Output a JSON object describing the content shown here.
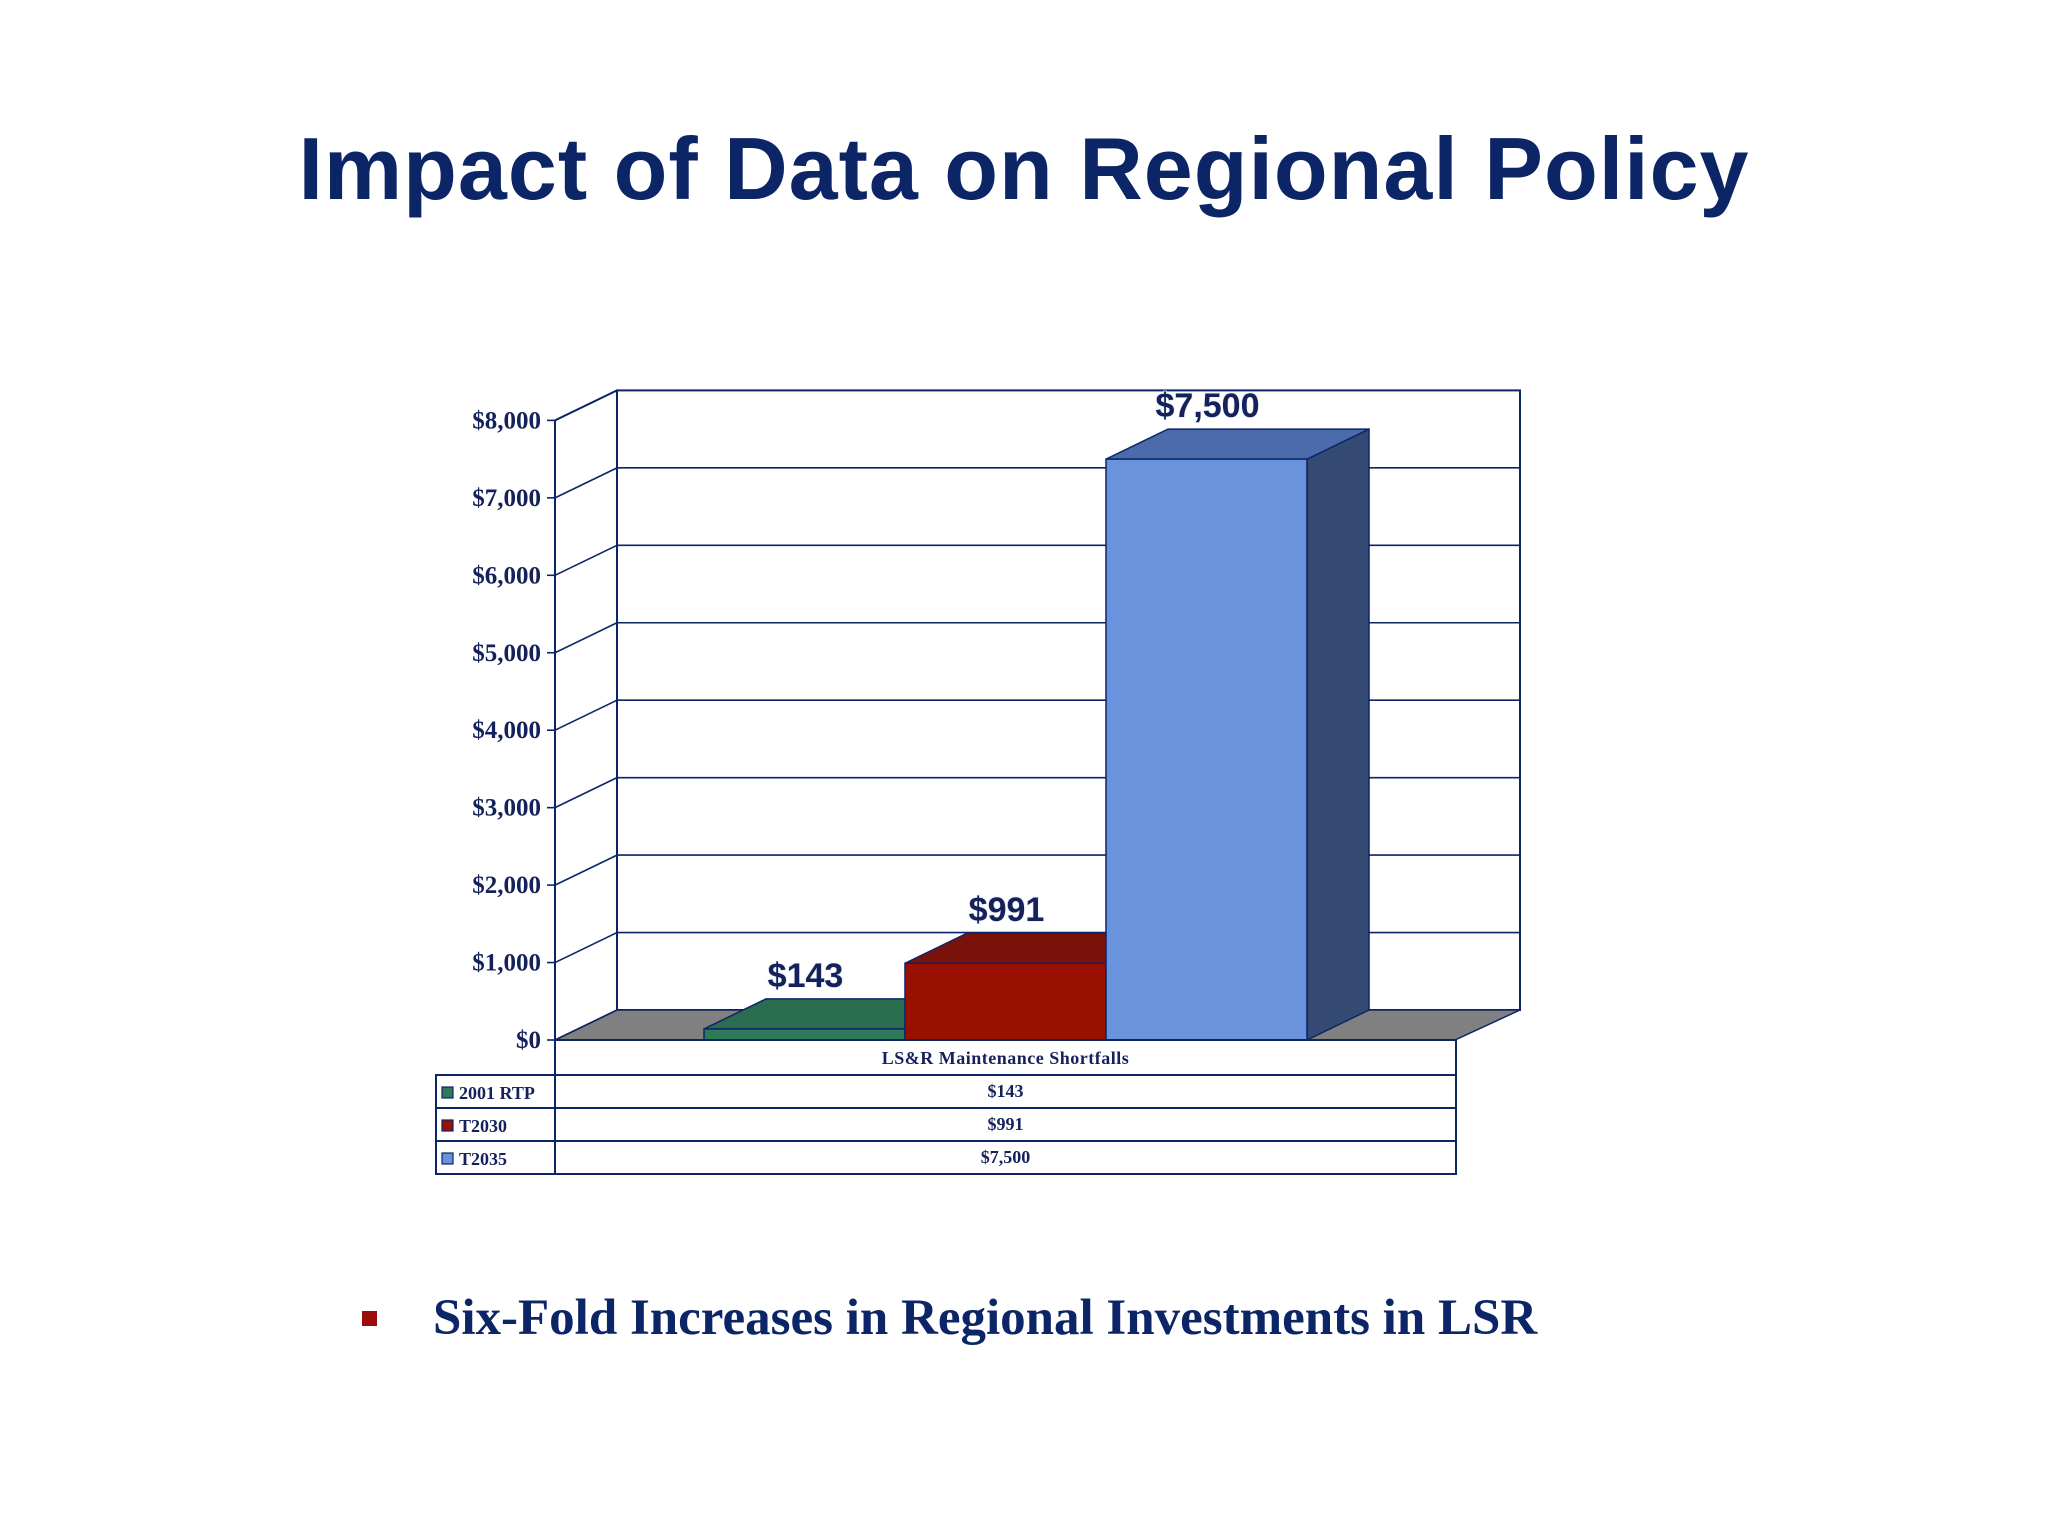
{
  "slide": {
    "title": "Impact of Data on Regional Policy",
    "bullet": "Six-Fold Increases in Regional Investments in LSR"
  },
  "chart_data": {
    "type": "bar",
    "categories": [
      "LS&R Maintenance Shortfalls"
    ],
    "series": [
      {
        "name": "2001 RTP",
        "values": [
          143
        ],
        "label": "$143",
        "table_value": "$143",
        "color": "#2e7a58",
        "top_color": "#2a6e4f",
        "side_color": "#1d4f38"
      },
      {
        "name": "T2030",
        "values": [
          991
        ],
        "label": "$991",
        "table_value": "$991",
        "color": "#991000",
        "top_color": "#7a120c",
        "side_color": "#5a0c08"
      },
      {
        "name": "T2035",
        "values": [
          7500
        ],
        "label": "$7,500",
        "table_value": "$7,500",
        "color": "#6a93de",
        "top_color": "#4b6bab",
        "side_color": "#344a73"
      }
    ],
    "y_ticks": [
      "$0",
      "$1,000",
      "$2,000",
      "$3,000",
      "$4,000",
      "$5,000",
      "$6,000",
      "$7,000",
      "$8,000"
    ],
    "ylim": [
      0,
      8000
    ],
    "grid": true,
    "legend": "data table below chart",
    "colors": {
      "axis": "#0b2567",
      "floor": "#808080",
      "wall": "#ffffff"
    }
  }
}
